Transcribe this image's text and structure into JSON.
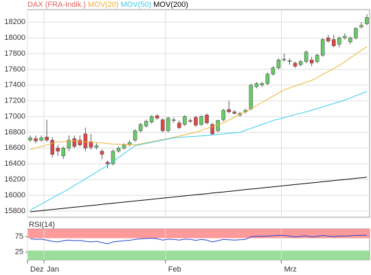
{
  "chart_data": [
    {
      "type": "candlestick",
      "categories": [
        null,
        null,
        null,
        null,
        null,
        null,
        null,
        null,
        null,
        null,
        null,
        null,
        null,
        null,
        null,
        null,
        null,
        null,
        null,
        null,
        null,
        null,
        null,
        null,
        null,
        null,
        null,
        null,
        null,
        null,
        null,
        null,
        null,
        null,
        null,
        null,
        null,
        null,
        null,
        null,
        null,
        null,
        null,
        null,
        null,
        null,
        null,
        null,
        null,
        null,
        null,
        null,
        null,
        null,
        null,
        null,
        null,
        null,
        null,
        null,
        null,
        null
      ],
      "ylim": [
        15720,
        18360
      ],
      "yticks": [
        15800,
        16000,
        16200,
        16400,
        16600,
        16800,
        17000,
        17200,
        17400,
        17600,
        17800,
        18000,
        18200
      ],
      "grid": true,
      "legend": "top-left",
      "series": [
        {
          "name": "DAX (FRA-Indik.)",
          "type": "candlestick",
          "color": "#e06060",
          "up_color": "#66cc66",
          "down_color": "#e04444",
          "open": [
            16700,
            16720,
            16700,
            16740,
            16700,
            16600,
            16500,
            16600,
            16720,
            16700,
            16780,
            16680,
            16610,
            16560,
            16420,
            16400,
            16560,
            16600,
            16640,
            16700,
            16820,
            16880,
            16930,
            17010,
            16960,
            16820,
            16950,
            16920,
            16900,
            16950,
            16990,
            16900,
            17020,
            16900,
            16820,
            16960,
            17090,
            17060,
            17020,
            17060,
            17100,
            17380,
            17400,
            17420,
            17540,
            17620,
            17720,
            17700,
            17680,
            17660,
            17700,
            17720,
            17700,
            17780,
            18000,
            17980,
            17920,
            18000,
            17950,
            18000,
            18140,
            18180
          ],
          "high": [
            16760,
            16760,
            16760,
            16960,
            16740,
            16640,
            16620,
            16760,
            16760,
            16760,
            16860,
            16780,
            16660,
            16580,
            16440,
            16580,
            16620,
            16660,
            16700,
            16840,
            16920,
            16960,
            17020,
            17030,
            16980,
            17000,
            16990,
            16950,
            17020,
            16980,
            17010,
            17020,
            17040,
            16920,
            16960,
            17100,
            17200,
            17080,
            17060,
            17100,
            17420,
            17440,
            17440,
            17560,
            17640,
            17740,
            17800,
            17740,
            17700,
            17720,
            17840,
            17760,
            17800,
            18000,
            18040,
            18040,
            18020,
            18060,
            18020,
            18140,
            18200,
            18300
          ],
          "low": [
            16680,
            16660,
            16680,
            16680,
            16480,
            16500,
            16460,
            16560,
            16600,
            16620,
            16560,
            16580,
            16580,
            16460,
            16340,
            16380,
            16540,
            16580,
            16620,
            16680,
            16800,
            16860,
            16910,
            16960,
            16800,
            16800,
            16920,
            16840,
            16880,
            16920,
            16870,
            16880,
            16900,
            16760,
            16800,
            16940,
            17040,
            17030,
            17000,
            17040,
            17080,
            17360,
            17380,
            17400,
            17520,
            17600,
            17700,
            17660,
            17620,
            17640,
            17680,
            17640,
            17680,
            17760,
            17940,
            17880,
            17880,
            17980,
            17920,
            17980,
            18120,
            18160
          ],
          "close": [
            16730,
            16690,
            16730,
            16700,
            16520,
            16560,
            16600,
            16700,
            16620,
            16640,
            16600,
            16610,
            16630,
            16520,
            16400,
            16560,
            16600,
            16640,
            16670,
            16820,
            16900,
            16940,
            17000,
            16980,
            16820,
            16980,
            16960,
            16860,
            17000,
            16940,
            16890,
            17000,
            16920,
            16780,
            16950,
            17080,
            17060,
            17040,
            17040,
            17080,
            17400,
            17420,
            17420,
            17540,
            17620,
            17720,
            17730,
            17710,
            17640,
            17700,
            17820,
            17680,
            17780,
            17980,
            17960,
            17900,
            18000,
            18020,
            18000,
            18120,
            18160,
            18260
          ]
        },
        {
          "name": "MOV(20)",
          "type": "line",
          "color": "#f0b030",
          "values": [
            16580,
            16600,
            16620,
            16640,
            16660,
            16680,
            16680,
            16690,
            16690,
            16685,
            16680,
            16675,
            16670,
            16665,
            16658,
            16650,
            16648,
            16645,
            16642,
            16640,
            16653,
            16667,
            16680,
            16693,
            16707,
            16720,
            16736,
            16752,
            16768,
            16784,
            16800,
            16824,
            16848,
            16872,
            16896,
            16920,
            16956,
            16992,
            17028,
            17064,
            17100,
            17140,
            17180,
            17220,
            17260,
            17300,
            17340,
            17364,
            17388,
            17412,
            17436,
            17460,
            17498,
            17536,
            17574,
            17612,
            17650,
            17698,
            17746,
            17794,
            17842,
            17890
          ]
        },
        {
          "name": "MOV(50)",
          "type": "line",
          "color": "#33ccee",
          "values": [
            15810,
            15849,
            15887,
            15926,
            15964,
            16003,
            16041,
            16080,
            16123,
            16166,
            16209,
            16251,
            16294,
            16337,
            16380,
            16430,
            16480,
            16530,
            16580,
            16630,
            16644,
            16659,
            16673,
            16687,
            16701,
            16716,
            16730,
            16735,
            16740,
            16745,
            16750,
            16755,
            16760,
            16767,
            16773,
            16780,
            16787,
            16793,
            16800,
            16825,
            16850,
            16875,
            16900,
            16925,
            16950,
            16969,
            16987,
            17006,
            17024,
            17043,
            17061,
            17080,
            17102,
            17123,
            17145,
            17167,
            17188,
            17210,
            17238,
            17265,
            17293,
            17320
          ]
        },
        {
          "name": "MOV(200)",
          "type": "line",
          "color": "#000000",
          "values": [
            15790,
            15797,
            15804,
            15812,
            15819,
            15826,
            15833,
            15840,
            15848,
            15855,
            15862,
            15869,
            15876,
            15884,
            15891,
            15898,
            15905,
            15912,
            15920,
            15927,
            15934,
            15941,
            15948,
            15956,
            15963,
            15970,
            15977,
            15984,
            15992,
            15999,
            16006,
            16013,
            16020,
            16028,
            16035,
            16042,
            16049,
            16056,
            16064,
            16071,
            16078,
            16085,
            16092,
            16100,
            16107,
            16114,
            16121,
            16128,
            16136,
            16143,
            16150,
            16157,
            16164,
            16172,
            16179,
            16186,
            16193,
            16200,
            16208,
            16215,
            16222,
            16230
          ]
        }
      ]
    },
    {
      "type": "line",
      "xlim": [
        -0.5,
        61.5
      ],
      "xticks": [
        {
          "value": -0.5,
          "label": "Dez"
        },
        {
          "value": 2.5,
          "label": "Jan"
        },
        {
          "value": 24.5,
          "label": "Feb"
        },
        {
          "value": 45.5,
          "label": "Mrz"
        }
      ],
      "ylim": [
        0,
        100
      ],
      "yticks": [
        25,
        75
      ],
      "bands": [
        {
          "from": 70,
          "to": 100,
          "color": "#ff8888"
        },
        {
          "from": 0,
          "to": 30,
          "color": "#88d888"
        }
      ],
      "series": [
        {
          "name": "RSI(14)",
          "color": "#2244cc",
          "values": [
            68,
            66,
            67,
            64,
            60,
            58,
            62,
            64,
            62,
            63,
            60,
            58,
            60,
            56,
            52,
            58,
            60,
            62,
            63,
            66,
            68,
            69,
            70,
            68,
            64,
            67,
            66,
            64,
            67,
            66,
            63,
            66,
            64,
            58,
            62,
            66,
            65,
            64,
            65,
            66,
            75,
            76,
            76,
            77,
            78,
            79,
            79,
            77,
            74,
            76,
            78,
            74,
            76,
            79,
            77,
            75,
            77,
            77,
            78,
            79,
            79,
            80
          ]
        }
      ]
    }
  ]
}
